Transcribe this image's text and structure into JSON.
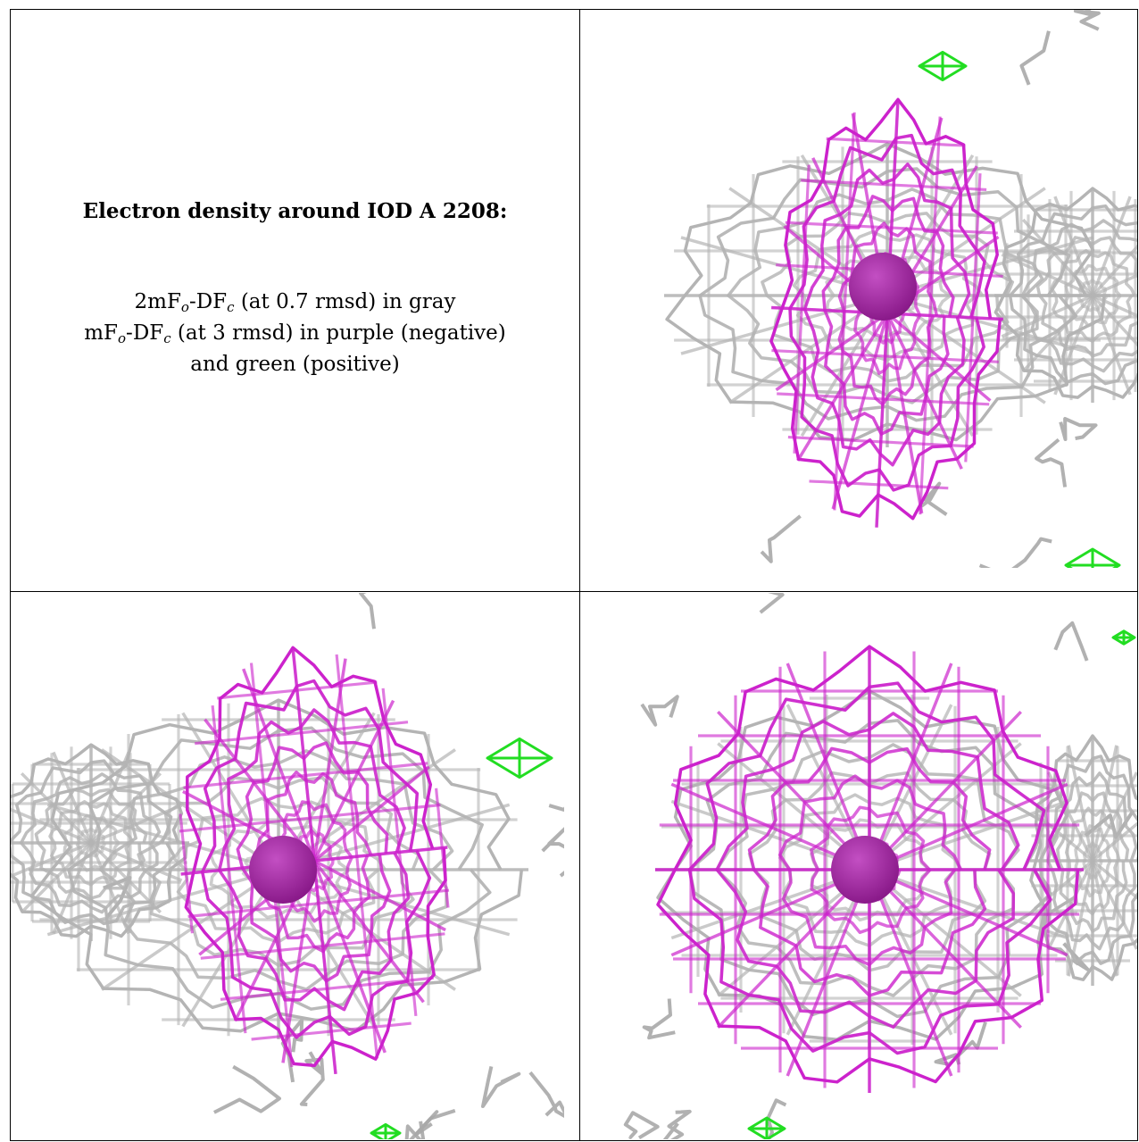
{
  "caption": {
    "title": "Electron density around IOD A 2208:",
    "line1": {
      "pre": "2mF",
      "sub1": "o",
      "mid": "-DF",
      "sub2": "c",
      "post": " (at 0.7 rmsd) in gray"
    },
    "line2": {
      "pre": "mF",
      "sub1": "o",
      "mid": "-DF",
      "sub2": "c",
      "post": " (at 3 rmsd) in purple (negative)"
    },
    "line3": "and green (positive)"
  },
  "colors": {
    "map_2fofc": "#b4b4b4",
    "map_fofc_negative": "#cc22cc",
    "map_fofc_positive": "#22dd22",
    "iodide_atom": "#8a1a8a"
  },
  "panels": [
    {
      "id": "top-right",
      "green_blobs": 2
    },
    {
      "id": "bottom-left",
      "green_blobs": 2
    },
    {
      "id": "bottom-right",
      "green_blobs": 2
    }
  ]
}
